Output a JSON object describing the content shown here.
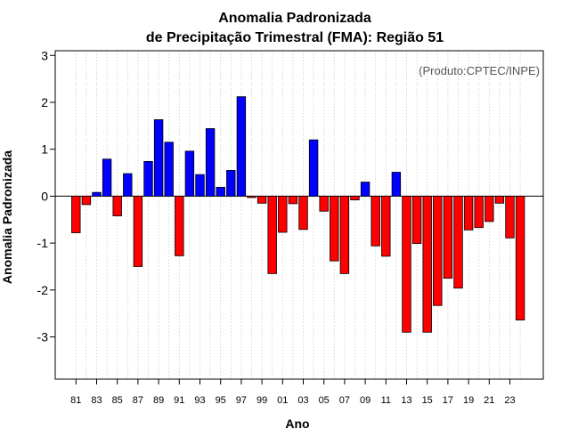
{
  "chart_data": {
    "type": "bar",
    "title": "Anomalia Padronizada",
    "subtitle": "de Precipitação Trimestral (FMA): Região 51",
    "xlabel": "Ano",
    "ylabel": "Anomalia Padronizada",
    "credit": "(Produto:CPTEC/INPE)",
    "ylim": [
      -3.9,
      3.1
    ],
    "yticks": [
      "-3",
      "-2",
      "-1",
      "0",
      "1",
      "2",
      "3"
    ],
    "ytick_values": [
      -3,
      -2,
      -1,
      0,
      1,
      2,
      3
    ],
    "grid": "vertical-dotted",
    "positive_color": "#0000ff",
    "negative_color": "#ff0000",
    "categories": [
      "81",
      "82",
      "83",
      "84",
      "85",
      "86",
      "87",
      "88",
      "89",
      "90",
      "91",
      "92",
      "93",
      "94",
      "95",
      "96",
      "97",
      "98",
      "99",
      "00",
      "01",
      "02",
      "03",
      "04",
      "05",
      "06",
      "07",
      "08",
      "09",
      "10",
      "11",
      "12",
      "13",
      "14",
      "15",
      "16",
      "17",
      "18",
      "19",
      "20",
      "21",
      "22",
      "23",
      "24"
    ],
    "tick_labels": [
      "81",
      "83",
      "85",
      "87",
      "89",
      "91",
      "93",
      "95",
      "97",
      "99",
      "01",
      "03",
      "05",
      "07",
      "09",
      "11",
      "13",
      "15",
      "17",
      "19",
      "21",
      "23"
    ],
    "values": [
      -0.78,
      -0.18,
      0.08,
      0.79,
      -0.42,
      0.48,
      -1.5,
      0.74,
      1.63,
      1.15,
      -1.27,
      0.96,
      0.46,
      1.44,
      0.19,
      0.55,
      2.12,
      -0.03,
      -0.15,
      -1.65,
      -0.77,
      -0.16,
      -0.71,
      1.2,
      -0.32,
      -1.38,
      -1.65,
      -0.08,
      0.3,
      -1.06,
      -1.28,
      0.51,
      -2.9,
      -1.01,
      -2.9,
      -2.33,
      -1.75,
      -1.96,
      -0.72,
      -0.67,
      -0.54,
      -0.15,
      -0.89,
      -2.64
    ]
  }
}
